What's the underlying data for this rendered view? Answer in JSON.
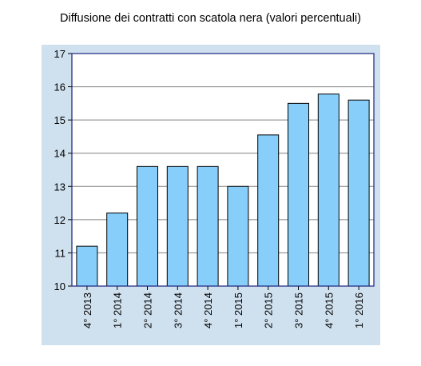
{
  "chart_data": {
    "type": "bar",
    "title": "Diffusione dei contratti con scatola nera (valori percentuali)",
    "categories": [
      "4° 2013",
      "1° 2014",
      "2° 2014",
      "3° 2014",
      "4° 2014",
      "1° 2015",
      "2° 2015",
      "3° 2015",
      "4° 2015",
      "1° 2016"
    ],
    "values": [
      11.2,
      12.2,
      13.6,
      13.6,
      13.6,
      13.0,
      14.55,
      15.5,
      15.78,
      15.6
    ],
    "xlabel": "",
    "ylabel": "",
    "ylim": [
      10,
      17
    ],
    "yticks": [
      "10",
      "11",
      "12",
      "13",
      "14",
      "15",
      "16",
      "17"
    ],
    "grid": true,
    "colors": {
      "bar_fill": "#87cefa",
      "bar_stroke": "#000000",
      "plot_border": "#1a237e",
      "panel_bg": "#cfe0ee",
      "gridline": "#808080"
    }
  }
}
